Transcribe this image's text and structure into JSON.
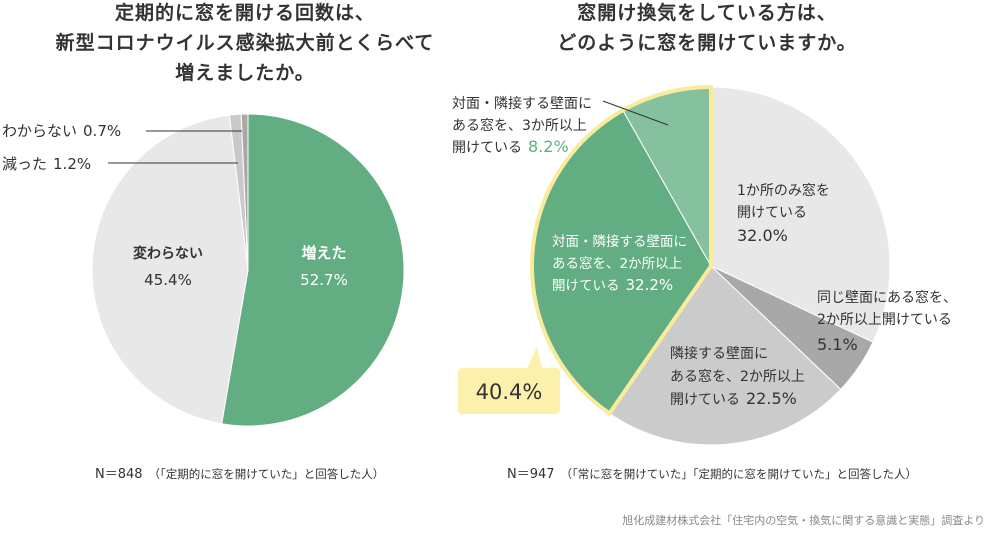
{
  "colors": {
    "green": "#63ad82",
    "light_green": "#86c19f",
    "light_gray": "#e8e8e8",
    "mid_gray": "#cbcbcb",
    "dark_gray": "#a8a8a8",
    "highlight": "#f8ec9c",
    "callout_bg": "#fbf1ad"
  },
  "left": {
    "title_lines": [
      "定期的に窓を開ける回数は、",
      "新型コロナウイルス感染拡大前とくらべて",
      "増えましたか。"
    ],
    "n_label": "N＝848",
    "n_note": "（「定期的に窓を開けていた」と回答した人）"
  },
  "right": {
    "title_lines": [
      "窓開け換気をしている方は、",
      "どのように窓を開けていますか。"
    ],
    "n_label": "N＝947",
    "n_note": "（「常に窓を開けていた」「定期的に窓を開けていた」と回答した人）",
    "callout_value": "40.4%"
  },
  "source": "旭化成建材株式会社「住宅内の空気・換気に関する意識と実態」調査より",
  "chart_data": [
    {
      "type": "pie",
      "slices": [
        {
          "label": "増えた",
          "value": 52.7,
          "value_text": "52.7%",
          "color": "#63ad82"
        },
        {
          "label": "変わらない",
          "value": 45.4,
          "value_text": "45.4%",
          "color": "#e8e8e8"
        },
        {
          "label": "減った",
          "value": 1.2,
          "value_text": "1.2%",
          "color": "#c9c9c9"
        },
        {
          "label": "わからない",
          "value": 0.7,
          "value_text": "0.7%",
          "color": "#a8a8a8"
        }
      ]
    },
    {
      "type": "pie",
      "slices": [
        {
          "label_lines": [
            "1か所のみ窓を",
            "開けている"
          ],
          "value": 32.0,
          "value_text": "32.0%",
          "color": "#e8e8e8"
        },
        {
          "label_lines": [
            "同じ壁面にある窓を、",
            "2か所以上開けている"
          ],
          "value": 5.1,
          "value_text": "5.1%",
          "color": "#a8a8a8"
        },
        {
          "label_lines": [
            "隣接する壁面に",
            "ある窓を、2か所以上",
            "開けている"
          ],
          "value": 22.5,
          "value_text": "22.5%",
          "color": "#cbcbcb"
        },
        {
          "label_lines": [
            "対面・隣接する壁面に",
            "ある窓を、2か所以上",
            "開けている"
          ],
          "value": 32.2,
          "value_text": "32.2%",
          "color": "#63ad82"
        },
        {
          "label_lines": [
            "対面・隣接する壁面に",
            "ある窓を、3か所以上",
            "開けている"
          ],
          "value": 8.2,
          "value_text": "8.2%",
          "color": "#86c19f"
        }
      ]
    }
  ]
}
